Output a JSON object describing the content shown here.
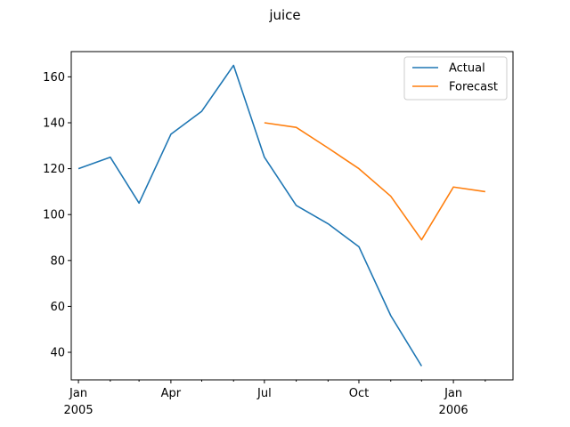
{
  "chart_data": {
    "type": "line",
    "title": "juice",
    "xlabel": "",
    "ylabel": "",
    "x": [
      "2005-01",
      "2005-02",
      "2005-03",
      "2005-04",
      "2005-05",
      "2005-06",
      "2005-07",
      "2005-08",
      "2005-09",
      "2005-10",
      "2005-11",
      "2005-12",
      "2006-01",
      "2006-02"
    ],
    "xlim": [
      "2004-12-25",
      "2006-02-28"
    ],
    "ylim": [
      28,
      171
    ],
    "y_ticks": [
      40,
      60,
      80,
      100,
      120,
      140,
      160
    ],
    "x_ticks": [
      {
        "x": "2005-01",
        "label": "Jan",
        "sublabel": "2005"
      },
      {
        "x": "2005-04",
        "label": "Apr",
        "sublabel": ""
      },
      {
        "x": "2005-07",
        "label": "Jul",
        "sublabel": ""
      },
      {
        "x": "2005-10",
        "label": "Oct",
        "sublabel": ""
      },
      {
        "x": "2006-01",
        "label": "Jan",
        "sublabel": "2006"
      }
    ],
    "x_minor_ticks": [
      "2005-02",
      "2005-03",
      "2005-05",
      "2005-06",
      "2005-08",
      "2005-09",
      "2005-11",
      "2005-12",
      "2006-02"
    ],
    "grid": false,
    "legend_position": "top-right",
    "series": [
      {
        "name": "Actual",
        "color": "#1f77b4",
        "points": [
          {
            "x": "2005-01",
            "y": 120
          },
          {
            "x": "2005-02",
            "y": 125
          },
          {
            "x": "2005-03",
            "y": 105
          },
          {
            "x": "2005-04",
            "y": 135
          },
          {
            "x": "2005-05",
            "y": 145
          },
          {
            "x": "2005-06",
            "y": 165
          },
          {
            "x": "2005-07",
            "y": 125
          },
          {
            "x": "2005-08",
            "y": 104
          },
          {
            "x": "2005-09",
            "y": 96
          },
          {
            "x": "2005-10",
            "y": 86
          },
          {
            "x": "2005-11",
            "y": 56
          },
          {
            "x": "2005-12",
            "y": 34
          }
        ]
      },
      {
        "name": "Forecast",
        "color": "#ff7f0e",
        "points": [
          {
            "x": "2005-07",
            "y": 140
          },
          {
            "x": "2005-08",
            "y": 138
          },
          {
            "x": "2005-09",
            "y": 129
          },
          {
            "x": "2005-10",
            "y": 120
          },
          {
            "x": "2005-11",
            "y": 108
          },
          {
            "x": "2005-12",
            "y": 89
          },
          {
            "x": "2006-01",
            "y": 112
          },
          {
            "x": "2006-02",
            "y": 110
          }
        ]
      }
    ]
  }
}
